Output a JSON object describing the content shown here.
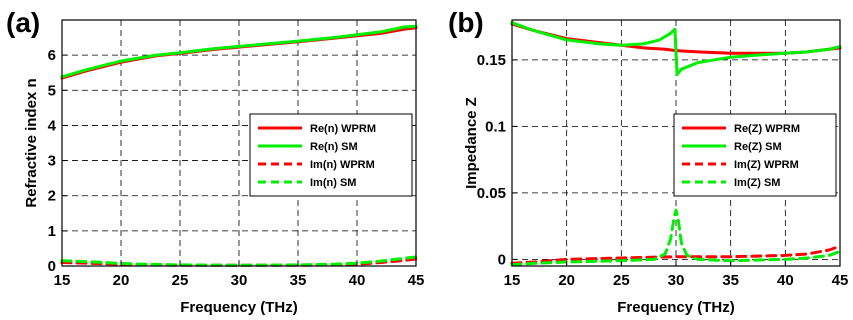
{
  "chart_data": [
    {
      "panel": "(a)",
      "type": "line",
      "xlabel": "Frequency (THz)",
      "ylabel": "Refractive index n",
      "xlim": [
        15,
        45
      ],
      "ylim": [
        0,
        7
      ],
      "xticks": [
        15,
        20,
        25,
        30,
        35,
        40,
        45
      ],
      "yticks": [
        0,
        1,
        2,
        3,
        4,
        5,
        6
      ],
      "grid": "dashed",
      "legend_placement": "center-right",
      "series": [
        {
          "name": "Re(n) WPRM",
          "color": "#ff0000",
          "dash": "solid",
          "x": [
            15,
            17,
            20,
            23,
            25,
            28,
            30,
            33,
            35,
            38,
            40,
            42,
            44,
            45
          ],
          "y": [
            5.35,
            5.55,
            5.8,
            5.98,
            6.05,
            6.17,
            6.23,
            6.32,
            6.38,
            6.48,
            6.55,
            6.62,
            6.74,
            6.78
          ]
        },
        {
          "name": "Re(n) SM",
          "color": "#00ee00",
          "dash": "solid",
          "x": [
            15,
            17,
            20,
            23,
            25,
            28,
            30,
            33,
            35,
            38,
            40,
            42,
            44,
            45
          ],
          "y": [
            5.38,
            5.58,
            5.83,
            6.0,
            6.07,
            6.19,
            6.25,
            6.34,
            6.4,
            6.5,
            6.58,
            6.66,
            6.8,
            6.82
          ]
        },
        {
          "name": "Im(n) WPRM",
          "color": "#ff0000",
          "dash": "dashed",
          "x": [
            15,
            18,
            20,
            22,
            25,
            30,
            35,
            38,
            40,
            42,
            44,
            45
          ],
          "y": [
            0.1,
            0.07,
            0.05,
            0.03,
            0.02,
            0.02,
            0.02,
            0.03,
            0.05,
            0.1,
            0.16,
            0.2
          ]
        },
        {
          "name": "Im(n) SM",
          "color": "#00ee00",
          "dash": "dashed",
          "x": [
            15,
            18,
            20,
            22,
            25,
            30,
            35,
            38,
            40,
            42,
            44,
            45
          ],
          "y": [
            0.15,
            0.11,
            0.07,
            0.05,
            0.03,
            0.02,
            0.03,
            0.05,
            0.08,
            0.14,
            0.22,
            0.26
          ]
        }
      ]
    },
    {
      "panel": "(b)",
      "type": "line",
      "xlabel": "Frequency (THz)",
      "ylabel": "Impedance Z",
      "xlim": [
        15,
        45
      ],
      "ylim": [
        -0.005,
        0.18
      ],
      "xticks": [
        15,
        20,
        25,
        30,
        35,
        40,
        45
      ],
      "yticks": [
        0,
        0.05,
        0.1,
        0.15
      ],
      "grid": "dashed",
      "legend_placement": "center-right",
      "series": [
        {
          "name": "Re(Z) WPRM",
          "color": "#ff0000",
          "dash": "solid",
          "x": [
            15,
            17,
            20,
            23,
            25,
            27,
            29,
            30,
            32,
            35,
            38,
            40,
            42,
            44,
            45
          ],
          "y": [
            0.177,
            0.172,
            0.166,
            0.163,
            0.161,
            0.159,
            0.158,
            0.157,
            0.156,
            0.155,
            0.155,
            0.155,
            0.156,
            0.158,
            0.159
          ]
        },
        {
          "name": "Re(Z) SM",
          "color": "#00ee00",
          "dash": "solid",
          "x": [
            15,
            17,
            20,
            23,
            25,
            27,
            28.5,
            29.5,
            29.9,
            30.1,
            30.5,
            32,
            35,
            38,
            40,
            42,
            44,
            45
          ],
          "y": [
            0.178,
            0.172,
            0.165,
            0.162,
            0.161,
            0.162,
            0.165,
            0.17,
            0.173,
            0.139,
            0.143,
            0.148,
            0.152,
            0.154,
            0.155,
            0.156,
            0.158,
            0.16
          ]
        },
        {
          "name": "Im(Z) WPRM",
          "color": "#ff0000",
          "dash": "dashed",
          "x": [
            15,
            17,
            20,
            25,
            30,
            35,
            40,
            42,
            44,
            45
          ],
          "y": [
            -0.003,
            -0.002,
            0.0,
            0.001,
            0.002,
            0.002,
            0.003,
            0.004,
            0.007,
            0.01
          ]
        },
        {
          "name": "Im(Z) SM",
          "color": "#00ee00",
          "dash": "dashed",
          "x": [
            15,
            17,
            20,
            25,
            28,
            29,
            29.5,
            29.8,
            30,
            30.2,
            30.5,
            31,
            32,
            35,
            40,
            42,
            44,
            45
          ],
          "y": [
            -0.004,
            -0.003,
            -0.002,
            -0.001,
            0.0,
            0.004,
            0.015,
            0.03,
            0.037,
            0.03,
            0.012,
            0.003,
            0.0,
            -0.001,
            0.0,
            0.001,
            0.003,
            0.006
          ]
        }
      ]
    }
  ]
}
